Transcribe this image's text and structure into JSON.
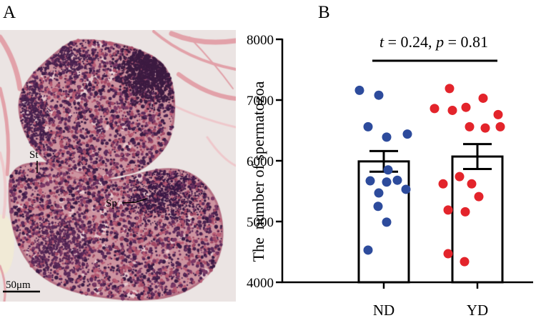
{
  "figure": {
    "panel_a_label": "A",
    "panel_b_label": "B"
  },
  "micrograph": {
    "label_st": "St",
    "label_sp": "Sp",
    "scale_bar_label": "50μm"
  },
  "colors": {
    "nd_points": "#2d4b9c",
    "yd_points": "#e3242b",
    "axis": "#000000",
    "bar_fill": "#ffffff"
  },
  "chart_data": {
    "type": "bar",
    "categories": [
      "ND",
      "YD"
    ],
    "values": [
      5990,
      6070
    ],
    "error_sem": [
      170,
      205
    ],
    "points": [
      [
        7160,
        7080,
        6560,
        6440,
        6390,
        5850,
        5670,
        5650,
        5680,
        5530,
        5470,
        5250,
        4990,
        4530
      ],
      [
        7190,
        7030,
        6880,
        6860,
        6830,
        6760,
        6560,
        6540,
        6560,
        5740,
        5620,
        5620,
        5410,
        5190,
        5160,
        4470,
        4340
      ]
    ],
    "ylabel": "The  number of spermatozoa",
    "ylim": [
      4000,
      8000
    ],
    "yticks": [
      4000,
      5000,
      6000,
      7000,
      8000
    ],
    "annotation": {
      "t_symbol": "t",
      "t_text": " = 0.24, ",
      "p_symbol": "p",
      "p_text": " = 0.81"
    },
    "grid": false,
    "legend": "none"
  }
}
